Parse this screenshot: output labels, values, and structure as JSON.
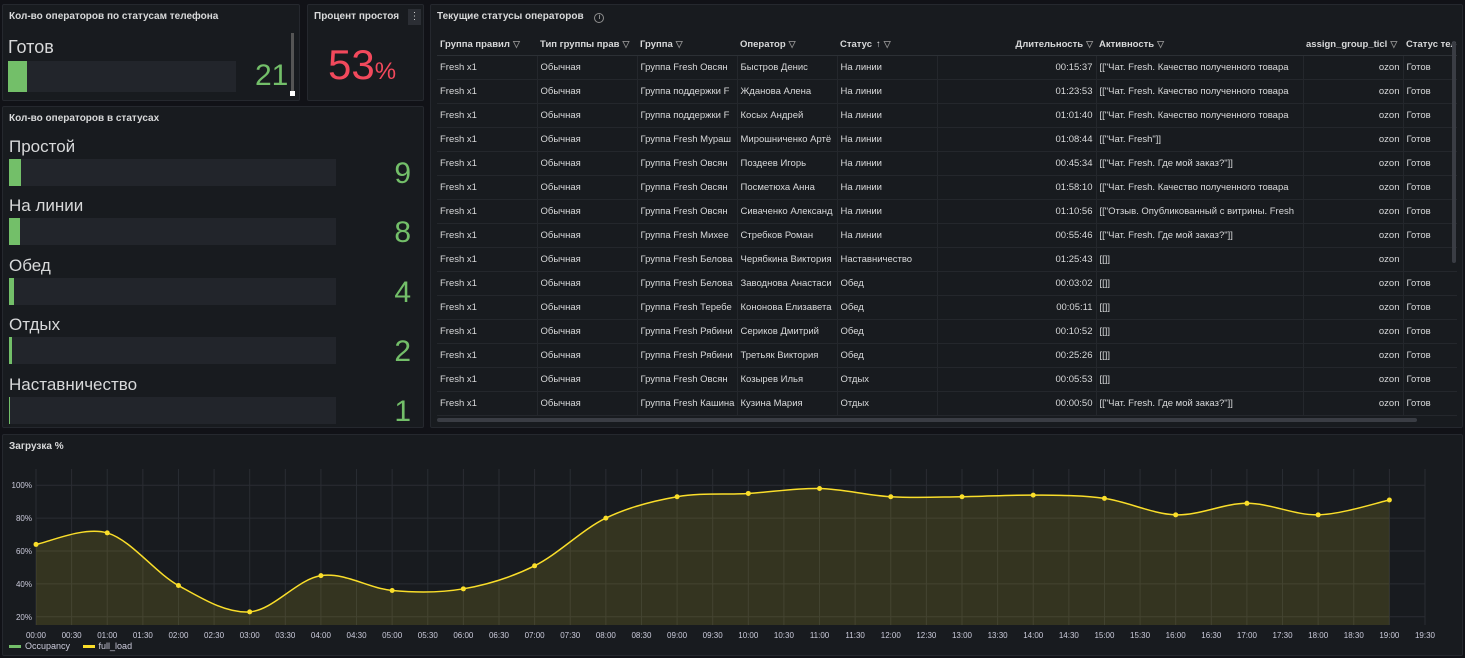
{
  "panels": {
    "ops_by_phone": {
      "title": "Кол-во операторов по статусам телефона",
      "label": "Готов",
      "value": "21",
      "fill": 0.06
    },
    "idle": {
      "title": "Процент простоя",
      "value": "53",
      "unit": "%",
      "menu_icon": "menu-icon"
    },
    "ops_by_status": {
      "title": "Кол-во операторов в статусах",
      "items": [
        {
          "label": "Простой",
          "value": "9",
          "fill": 0.036
        },
        {
          "label": "На линии",
          "value": "8",
          "fill": 0.034
        },
        {
          "label": "Обед",
          "value": "4",
          "fill": 0.017
        },
        {
          "label": "Отдых",
          "value": "2",
          "fill": 0.009
        },
        {
          "label": "Наставничество",
          "value": "1",
          "fill": 0.004
        }
      ]
    },
    "current": {
      "title": "Текущие статусы операторов",
      "info_icon": "info-icon",
      "columns": [
        "Группа правил",
        "Тип группы прав",
        "Группа",
        "Оператор",
        "Статус",
        "Длительность",
        "Активность",
        "assign_group_ticl",
        "Статус теле"
      ],
      "rows": [
        [
          "Fresh x1",
          "Обычная",
          "Группа Fresh Овсян",
          "Быстров Денис",
          "На линии",
          "00:15:37",
          "[[\"Чат. Fresh. Качество полученного товара",
          "ozon",
          "Готов"
        ],
        [
          "Fresh x1",
          "Обычная",
          "Группа поддержки F",
          "Жданова Алена",
          "На линии",
          "01:23:53",
          "[[\"Чат. Fresh. Качество полученного товара",
          "ozon",
          "Готов"
        ],
        [
          "Fresh x1",
          "Обычная",
          "Группа поддержки F",
          "Косых Андрей",
          "На линии",
          "01:01:40",
          "[[\"Чат. Fresh. Качество полученного товара",
          "ozon",
          "Готов"
        ],
        [
          "Fresh x1",
          "Обычная",
          "Группа Fresh Мураш",
          "Мирошниченко Артё",
          "На линии",
          "01:08:44",
          "[[\"Чат. Fresh\"]]",
          "ozon",
          "Готов"
        ],
        [
          "Fresh x1",
          "Обычная",
          "Группа Fresh Овсян",
          "Поздеев Игорь",
          "На линии",
          "00:45:34",
          "[[\"Чат. Fresh. Где мой заказ?\"]]",
          "ozon",
          "Готов"
        ],
        [
          "Fresh x1",
          "Обычная",
          "Группа Fresh Овсян",
          "Посметюха Анна",
          "На линии",
          "01:58:10",
          "[[\"Чат. Fresh. Качество полученного товара",
          "ozon",
          "Готов"
        ],
        [
          "Fresh x1",
          "Обычная",
          "Группа Fresh Овсян",
          "Сиваченко Александ",
          "На линии",
          "01:10:56",
          "[[\"Отзыв. Опубликованный с витрины. Fresh",
          "ozon",
          "Готов"
        ],
        [
          "Fresh x1",
          "Обычная",
          "Группа Fresh Михее",
          "Стребков Роман",
          "На линии",
          "00:55:46",
          "[[\"Чат. Fresh. Где мой заказ?\"]]",
          "ozon",
          "Готов"
        ],
        [
          "Fresh x1",
          "Обычная",
          "Группа Fresh Белова",
          "Черябкина Виктория",
          "Наставничество",
          "01:25:43",
          "[[]]",
          "ozon",
          ""
        ],
        [
          "Fresh x1",
          "Обычная",
          "Группа Fresh Белова",
          "Заводнова Анастаси",
          "Обед",
          "00:03:02",
          "[[]]",
          "ozon",
          "Готов"
        ],
        [
          "Fresh x1",
          "Обычная",
          "Группа Fresh Теребе",
          "Кононова Елизавета",
          "Обед",
          "00:05:11",
          "[[]]",
          "ozon",
          "Готов"
        ],
        [
          "Fresh x1",
          "Обычная",
          "Группа Fresh Рябини",
          "Сериков Дмитрий",
          "Обед",
          "00:10:52",
          "[[]]",
          "ozon",
          "Готов"
        ],
        [
          "Fresh x1",
          "Обычная",
          "Группа Fresh Рябини",
          "Третьяк Виктория",
          "Обед",
          "00:25:26",
          "[[]]",
          "ozon",
          "Готов"
        ],
        [
          "Fresh x1",
          "Обычная",
          "Группа Fresh Овсян",
          "Козырев Илья",
          "Отдых",
          "00:05:53",
          "[[]]",
          "ozon",
          "Готов"
        ],
        [
          "Fresh x1",
          "Обычная",
          "Группа Fresh Кашина",
          "Кузина Мария",
          "Отдых",
          "00:00:50",
          "[[\"Чат. Fresh. Где мой заказ?\"]]",
          "ozon",
          "Готов"
        ]
      ]
    },
    "load": {
      "title": "Загрузка %"
    }
  },
  "chart_data": {
    "type": "line",
    "title": "Загрузка %",
    "x": [
      "00:00",
      "00:30",
      "01:00",
      "01:30",
      "02:00",
      "02:30",
      "03:00",
      "03:30",
      "04:00",
      "04:30",
      "05:00",
      "05:30",
      "06:00",
      "06:30",
      "07:00",
      "07:30",
      "08:00",
      "08:30",
      "09:00",
      "09:30",
      "10:00",
      "10:30",
      "11:00",
      "11:30",
      "12:00",
      "12:30",
      "13:00",
      "13:30",
      "14:00",
      "14:30",
      "15:00",
      "15:30",
      "16:00",
      "16:30",
      "17:00",
      "17:30",
      "18:00",
      "18:30",
      "19:00",
      "19:30"
    ],
    "y_ticks": [
      "20%",
      "40%",
      "60%",
      "80%",
      "100%"
    ],
    "ylim": [
      15,
      105
    ],
    "series": [
      {
        "name": "Occupancy",
        "color": "#73bf69",
        "points": []
      },
      {
        "name": "full_load",
        "color": "#fade2a",
        "points": [
          [
            "00:00",
            64
          ],
          [
            "01:00",
            71
          ],
          [
            "02:00",
            39
          ],
          [
            "03:00",
            23
          ],
          [
            "04:00",
            45
          ],
          [
            "05:00",
            36
          ],
          [
            "06:00",
            37
          ],
          [
            "07:00",
            51
          ],
          [
            "08:00",
            80
          ],
          [
            "09:00",
            93
          ],
          [
            "10:00",
            95
          ],
          [
            "11:00",
            98
          ],
          [
            "12:00",
            93
          ],
          [
            "13:00",
            93
          ],
          [
            "14:00",
            94
          ],
          [
            "15:00",
            92
          ],
          [
            "16:00",
            82
          ],
          [
            "17:00",
            89
          ],
          [
            "18:00",
            82
          ],
          [
            "19:00",
            91
          ]
        ]
      }
    ]
  }
}
